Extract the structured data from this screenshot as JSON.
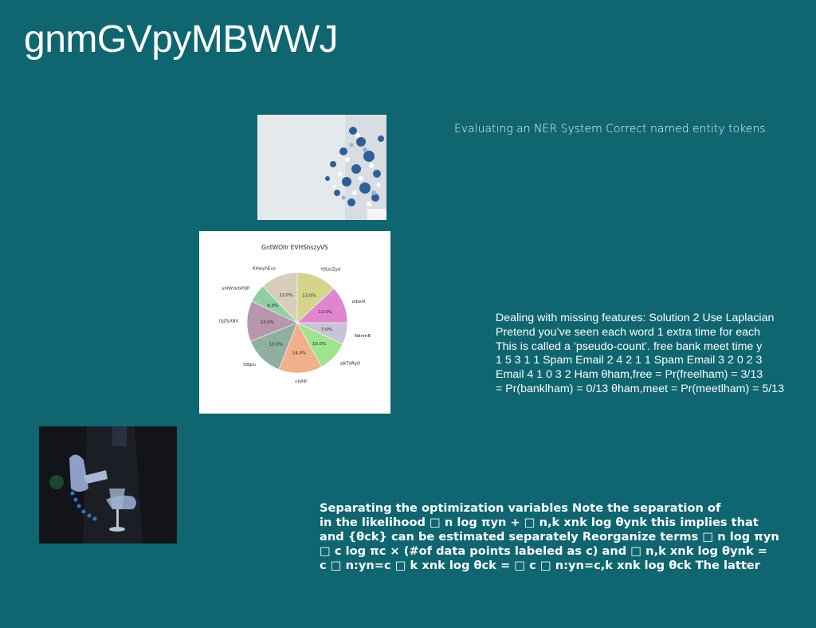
{
  "slide": {
    "title": "gnmGVpyMBWWJ",
    "background_color": "#0f6670",
    "ner_text": "Evaluating an NER System Correct named entity tokens",
    "laplace_text": "Dealing with missing features: Solution 2 Use Laplacian\nPretend you’ve seen each word 1 extra time for each\nThis is called a ’pseudo-count’. free bank meet time y\n1 5 3 1 1 Spam Email 2 4 2 1 1 Spam Email 3 2 0 2 3\nEmail 4 1 0 3 2 Ham θham,free = Pr(freelham) = 3/13\n= Pr(banklham) = 0/13 θham,meet = Pr(meetlham) = 5/13",
    "optim_text": "Separating the optimization variables Note the separation of\nin the likelihood □ n log πyn + □ n,k xnk log θynk this implies that\nand {θck} can be estimated separately Reorganize terms □ n log πyn\n□ c log πc × (#of data points labeled as c) and □ n,k xnk log θynk =\nc □ n:yn=c □ k xnk log θck = □ c □ n:yn=c,k xnk log θck The latter",
    "images": {
      "flowers": "photo of blue and white flowers in a vase",
      "pour": "photo of a person pouring a drink into a glass"
    }
  },
  "chart_data": {
    "type": "pie",
    "title": "GntWOllr EVHShszyVS",
    "slices": [
      {
        "label": "YjfLkiZyd",
        "value": 13.0,
        "pct_label": "13.0%",
        "color": "#d4d48c"
      },
      {
        "label": "ztbelX",
        "value": 12.0,
        "pct_label": "12.0%",
        "color": "#e086cf"
      },
      {
        "label": "NdnmB",
        "value": 7.0,
        "pct_label": "7.0%",
        "color": "#c9c3d6"
      },
      {
        "label": "sJkTdRyD",
        "value": 10.0,
        "pct_label": "10.0%",
        "color": "#9fe38c"
      },
      {
        "label": "nhPiP",
        "value": 14.0,
        "pct_label": "14.0%",
        "color": "#f0b089"
      },
      {
        "label": "tdljpu",
        "value": 13.0,
        "pct_label": "13.0%",
        "color": "#8fb0a1"
      },
      {
        "label": "DjjTyXBX",
        "value": 13.0,
        "pct_label": "13.0%",
        "color": "#b896ae"
      },
      {
        "label": "uhNYdcbPQP",
        "value": 6.0,
        "pct_label": "6.0%",
        "color": "#8fcfa0"
      },
      {
        "label": "KHwyhEuz",
        "value": 12.0,
        "pct_label": "12.0%",
        "color": "#d8cdbb"
      }
    ],
    "start": "top",
    "direction": "clockwise"
  }
}
